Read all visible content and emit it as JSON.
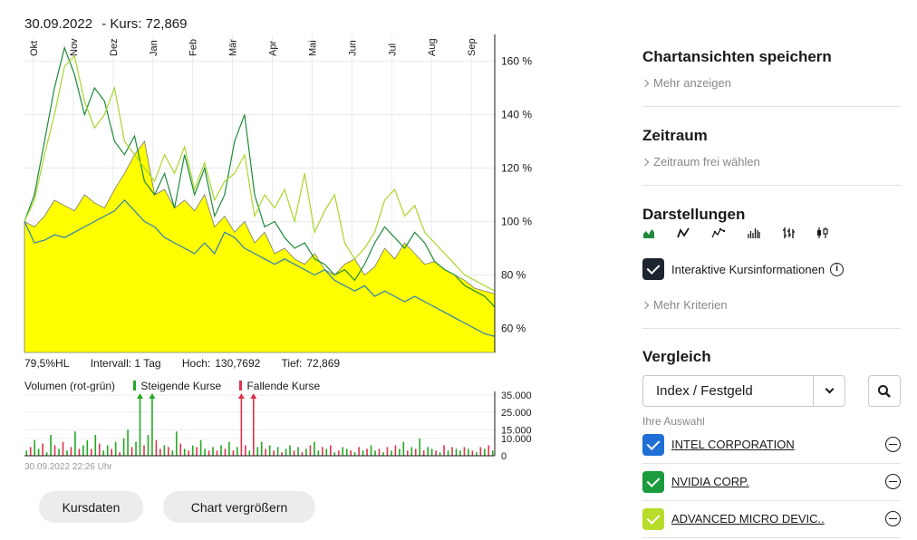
{
  "header": {
    "date": "30.09.2022",
    "kurs_label": "- Kurs: 72,869"
  },
  "stats": {
    "hl": "79,5%HL",
    "intervall": "Intervall: 1 Tag",
    "hoch_label": "Hoch:",
    "hoch": "130,7692",
    "tief_label": "Tief:",
    "tief": "72,869"
  },
  "volume_legend": {
    "title": "Volumen (rot-grün)",
    "up": "Steigende Kurse",
    "down": "Fallende Kurse"
  },
  "timestamp": "30.09.2022 22:26 Uhr",
  "buttons": {
    "kursdaten": "Kursdaten",
    "vergroessern": "Chart vergrößern"
  },
  "sidebar": {
    "save_title": "Chartansichten speichern",
    "save_link": "Mehr anzeigen",
    "zeitraum_title": "Zeitraum",
    "zeitraum_link": "Zeitraum frei wählen",
    "darstellungen_title": "Darstellungen",
    "view_icons": [
      "area-chart-icon",
      "line-chart-icon",
      "dotted-line-chart-icon",
      "bar-chart-icon",
      "ohlc-chart-icon",
      "candlestick-chart-icon"
    ],
    "interaktive_label": "Interaktive Kursinformationen",
    "mehr_kriterien": "Mehr Kriterien",
    "vergleich_title": "Vergleich",
    "select_value": "Index / Festgeld",
    "auswahl_label": "Ihre Auswahl",
    "comparisons": [
      {
        "name": "INTEL CORPORATION",
        "color": "#1f6fd6"
      },
      {
        "name": "NVIDIA CORP.",
        "color": "#1a9b3c"
      },
      {
        "name": "ADVANCED MICRO DEVIC..",
        "color": "#b8dc2a"
      }
    ]
  },
  "colors": {
    "main_area": "#ffff00",
    "intel": "#2a7fb8",
    "nvidia": "#1f8a3a",
    "amd": "#a9d62a",
    "up": "#22aa22",
    "down": "#e0334d"
  },
  "chart_data": {
    "type": "area",
    "months": [
      "Okt",
      "Nov",
      "Dez",
      "Jan",
      "Feb",
      "Mär",
      "Apr",
      "Mai",
      "Jun",
      "Jul",
      "Aug",
      "Sep"
    ],
    "y_ticks": [
      "160 %",
      "140 %",
      "120 %",
      "100 %",
      "80 %",
      "60 %"
    ],
    "y_tick_values": [
      160,
      140,
      120,
      100,
      80,
      60
    ],
    "ylim": [
      51,
      170
    ],
    "series": [
      {
        "name": "",
        "color": "#ffff00",
        "kind": "area",
        "values": [
          100,
          98,
          102,
          108,
          106,
          104,
          110,
          107,
          105,
          112,
          118,
          125,
          130,
          110,
          112,
          105,
          108,
          104,
          110,
          98,
          102,
          96,
          100,
          92,
          96,
          88,
          90,
          86,
          84,
          88,
          82,
          80,
          84,
          86,
          80,
          83,
          90,
          86,
          92,
          88,
          84,
          85,
          82,
          80,
          78,
          75,
          74,
          72.9
        ]
      },
      {
        "name": "INTEL CORPORATION",
        "color": "#2a7fb8",
        "kind": "line",
        "values": [
          100,
          92,
          93,
          95,
          94,
          96,
          98,
          100,
          102,
          104,
          108,
          104,
          100,
          98,
          94,
          92,
          90,
          88,
          92,
          88,
          96,
          94,
          90,
          88,
          86,
          84,
          86,
          84,
          82,
          80,
          82,
          78,
          76,
          74,
          76,
          72,
          74,
          72,
          70,
          72,
          70,
          68,
          66,
          64,
          62,
          60,
          58,
          57
        ]
      },
      {
        "name": "NVIDIA CORP.",
        "color": "#1f8a3a",
        "kind": "line",
        "values": [
          100,
          110,
          130,
          150,
          165,
          155,
          140,
          150,
          145,
          130,
          125,
          132,
          115,
          110,
          118,
          105,
          125,
          110,
          120,
          102,
          110,
          130,
          140,
          110,
          98,
          100,
          94,
          90,
          92,
          86,
          84,
          80,
          82,
          78,
          84,
          92,
          98,
          94,
          90,
          96,
          92,
          85,
          82,
          80,
          76,
          74,
          72,
          68
        ]
      },
      {
        "name": "ADVANCED MICRO DEVIC..",
        "color": "#a9d62a",
        "kind": "line",
        "values": [
          100,
          108,
          125,
          140,
          158,
          162,
          145,
          135,
          140,
          150,
          130,
          125,
          120,
          115,
          125,
          118,
          128,
          112,
          122,
          108,
          115,
          118,
          125,
          102,
          110,
          105,
          112,
          100,
          118,
          96,
          104,
          110,
          92,
          86,
          90,
          96,
          108,
          112,
          102,
          106,
          96,
          92,
          88,
          84,
          80,
          78,
          76,
          74
        ]
      }
    ],
    "volume": {
      "y_ticks": [
        "35.000",
        "25.000",
        "15.000",
        "10.000",
        "0"
      ],
      "y_tick_values": [
        35000,
        25000,
        15000,
        10000,
        0
      ],
      "ylim": [
        0,
        35000
      ],
      "values": [
        3000,
        5000,
        9000,
        4000,
        7000,
        2000,
        12000,
        6000,
        4000,
        8000,
        3000,
        5000,
        14000,
        4000,
        6000,
        9000,
        4000,
        12000,
        7000,
        3000,
        6000,
        4000,
        8000,
        2000,
        10000,
        15000,
        5000,
        8000,
        33000,
        6000,
        12000,
        34000,
        9000,
        4000,
        6000,
        5000,
        3000,
        14000,
        7000,
        4000,
        3000,
        6000,
        5000,
        9000,
        4000,
        3000,
        5000,
        3000,
        6000,
        4000,
        8000,
        3000,
        5000,
        34000,
        6000,
        3000,
        34000,
        5000,
        8000,
        4000,
        6000,
        3000,
        5000,
        2000,
        4000,
        6000,
        3000,
        5000,
        2000,
        4000,
        6000,
        8000,
        3000,
        5000,
        4000,
        6000,
        2000,
        3000,
        5000,
        4000,
        3000,
        2000,
        5000,
        3000,
        4000,
        6000,
        3000,
        4000,
        2000,
        5000,
        3000,
        6000,
        4000,
        8000,
        3000,
        5000,
        4000,
        10000,
        3000,
        5000,
        4000,
        3000,
        2000,
        6000,
        3000,
        5000,
        4000,
        3000,
        5000,
        4000,
        3000,
        2000,
        5000,
        4000,
        6000,
        3000
      ],
      "up_flags": [
        1,
        0,
        1,
        1,
        0,
        1,
        1,
        0,
        1,
        0,
        1,
        0,
        1,
        0,
        1,
        1,
        0,
        1,
        0,
        1,
        1,
        0,
        1,
        0,
        1,
        1,
        0,
        1,
        1,
        0,
        1,
        1,
        0,
        0,
        1,
        0,
        1,
        1,
        0,
        1,
        0,
        1,
        0,
        1,
        1,
        0,
        1,
        0,
        1,
        0,
        1,
        0,
        1,
        0,
        0,
        1,
        0,
        1,
        1,
        0,
        1,
        0,
        1,
        0,
        1,
        1,
        0,
        1,
        0,
        1,
        0,
        1,
        1,
        0,
        1,
        0,
        1,
        0,
        1,
        1,
        0,
        1,
        0,
        1,
        0,
        1,
        1,
        0,
        1,
        0,
        1,
        0,
        1,
        1,
        0,
        1,
        0,
        1,
        0,
        1,
        1,
        0,
        1,
        0,
        1,
        0,
        1,
        1,
        0,
        1,
        0,
        1,
        0,
        1,
        0,
        1
      ],
      "arrows": [
        {
          "index": 28,
          "dir": "up"
        },
        {
          "index": 31,
          "dir": "up"
        },
        {
          "index": 53,
          "dir": "down"
        },
        {
          "index": 56,
          "dir": "down"
        }
      ]
    }
  }
}
